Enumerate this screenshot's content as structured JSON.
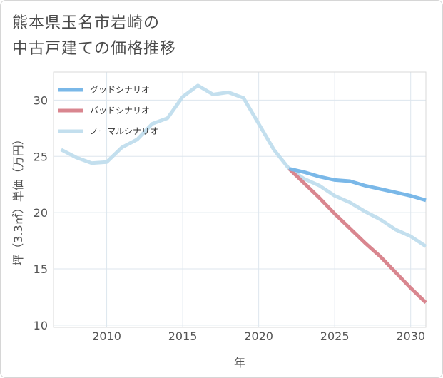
{
  "title_lines": [
    "熊本県玉名市岩崎の",
    "中古戸建ての価格推移"
  ],
  "chart_data": {
    "type": "line",
    "title": "熊本県玉名市岩崎の中古戸建ての価格推移",
    "xlabel": "年",
    "ylabel": "坪（3.3㎡）単価（万円）",
    "xlim": [
      2006.5,
      2031
    ],
    "ylim": [
      9.8,
      32.5
    ],
    "xticks": [
      2010,
      2015,
      2020,
      2025,
      2030
    ],
    "yticks": [
      10,
      15,
      20,
      25,
      30
    ],
    "grid": true,
    "legend_position": "top-left",
    "series": [
      {
        "name": "グッドシナリオ",
        "color": "#7ab8e8",
        "x": [
          2022,
          2023,
          2024,
          2025,
          2026,
          2027,
          2028,
          2029,
          2030,
          2031
        ],
        "y": [
          23.9,
          23.6,
          23.2,
          22.9,
          22.8,
          22.4,
          22.1,
          21.8,
          21.5,
          21.1
        ]
      },
      {
        "name": "バッドシナリオ",
        "color": "#d9868f",
        "x": [
          2022,
          2023,
          2024,
          2025,
          2026,
          2027,
          2028,
          2029,
          2030,
          2031
        ],
        "y": [
          23.9,
          22.6,
          21.3,
          19.9,
          18.6,
          17.3,
          16.1,
          14.7,
          13.3,
          12.0
        ]
      },
      {
        "name": "ノーマルシナリオ",
        "color": "#c3dfee",
        "x": [
          2007,
          2008,
          2009,
          2010,
          2011,
          2012,
          2013,
          2014,
          2015,
          2016,
          2017,
          2018,
          2019,
          2020,
          2021,
          2022,
          2023,
          2024,
          2025,
          2026,
          2027,
          2028,
          2029,
          2030,
          2031
        ],
        "y": [
          25.6,
          24.9,
          24.4,
          24.5,
          25.8,
          26.5,
          27.9,
          28.4,
          30.3,
          31.3,
          30.5,
          30.7,
          30.2,
          27.9,
          25.6,
          23.9,
          23.0,
          22.4,
          21.5,
          20.9,
          20.1,
          19.4,
          18.5,
          17.9,
          17.0
        ]
      }
    ]
  }
}
